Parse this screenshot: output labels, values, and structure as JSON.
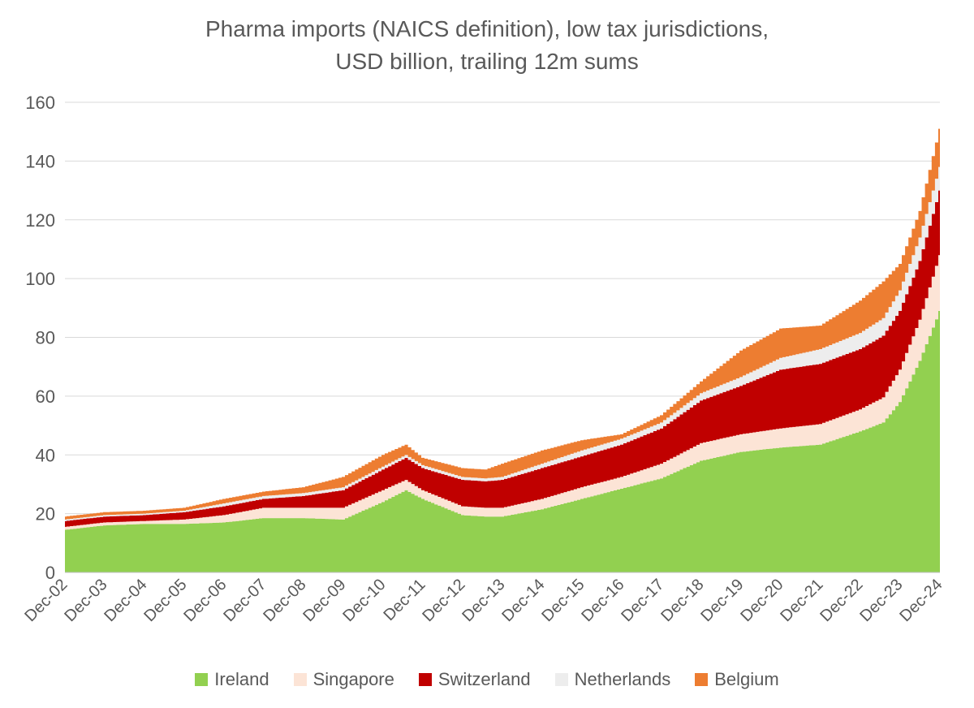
{
  "chart_data": {
    "type": "area",
    "stacked": true,
    "title": "Pharma imports (NAICS definition), low tax jurisdictions,",
    "subtitle": "USD billion, trailing 12m sums",
    "ylim": [
      0,
      160
    ],
    "yticks": [
      0,
      20,
      40,
      60,
      80,
      100,
      120,
      140,
      160
    ],
    "grid": true,
    "legend_position": "bottom",
    "x": [
      2002.92,
      2003.92,
      2004.92,
      2005.92,
      2006.92,
      2007.92,
      2008.92,
      2009.92,
      2010.92,
      2011.5,
      2011.92,
      2012.92,
      2013.5,
      2013.92,
      2014.92,
      2015.92,
      2016.92,
      2017.92,
      2018.92,
      2019.92,
      2020.92,
      2021.92,
      2022.92,
      2023.5,
      2023.92,
      2024.42,
      2024.92
    ],
    "xtick_labels": [
      "Dec-02",
      "Dec-03",
      "Dec-04",
      "Dec-05",
      "Dec-06",
      "Dec-07",
      "Dec-08",
      "Dec-09",
      "Dec-10",
      "Dec-11",
      "Dec-12",
      "Dec-13",
      "Dec-14",
      "Dec-15",
      "Dec-16",
      "Dec-17",
      "Dec-18",
      "Dec-19",
      "Dec-20",
      "Dec-21",
      "Dec-22",
      "Dec-23",
      "Dec-24"
    ],
    "series": [
      {
        "name": "Ireland",
        "color": "#92D050",
        "values": [
          14.5,
          16.0,
          16.5,
          16.5,
          17.0,
          18.5,
          18.5,
          18.0,
          24.0,
          28.0,
          25.0,
          19.5,
          19.0,
          19.0,
          21.5,
          25.0,
          28.5,
          32.0,
          38.0,
          41.0,
          42.5,
          43.5,
          48.0,
          51.0,
          58.0,
          72.0,
          89.0
        ]
      },
      {
        "name": "Singapore",
        "color": "#FCE4D6",
        "values": [
          1.0,
          1.0,
          1.0,
          1.5,
          2.5,
          3.5,
          3.5,
          4.0,
          4.0,
          3.5,
          3.0,
          3.0,
          3.0,
          3.0,
          3.5,
          4.0,
          4.0,
          5.0,
          6.0,
          6.0,
          6.5,
          7.0,
          7.5,
          8.5,
          11.0,
          14.0,
          19.0
        ]
      },
      {
        "name": "Switzerland",
        "color": "#C00000",
        "values": [
          2.0,
          2.0,
          2.0,
          2.5,
          3.0,
          3.0,
          4.0,
          6.0,
          7.0,
          7.5,
          7.5,
          9.0,
          9.0,
          9.5,
          10.5,
          10.5,
          11.0,
          12.0,
          14.5,
          16.5,
          20.0,
          20.5,
          20.5,
          21.0,
          20.0,
          20.0,
          22.0
        ]
      },
      {
        "name": "Netherlands",
        "color": "#EDEDED",
        "values": [
          0.5,
          0.5,
          0.5,
          0.5,
          1.0,
          1.0,
          1.0,
          1.0,
          1.0,
          1.0,
          1.0,
          1.0,
          1.0,
          1.0,
          1.5,
          2.0,
          2.0,
          2.0,
          2.5,
          3.0,
          4.0,
          5.0,
          5.5,
          6.0,
          7.0,
          8.0,
          8.0
        ]
      },
      {
        "name": "Belgium",
        "color": "#ED7D31",
        "values": [
          1.0,
          1.0,
          1.0,
          1.0,
          1.5,
          1.5,
          2.0,
          3.5,
          4.0,
          3.5,
          2.5,
          3.0,
          3.0,
          4.5,
          4.5,
          3.5,
          1.5,
          2.5,
          4.0,
          9.0,
          10.0,
          8.0,
          11.0,
          12.5,
          9.0,
          9.0,
          13.0
        ]
      }
    ]
  }
}
